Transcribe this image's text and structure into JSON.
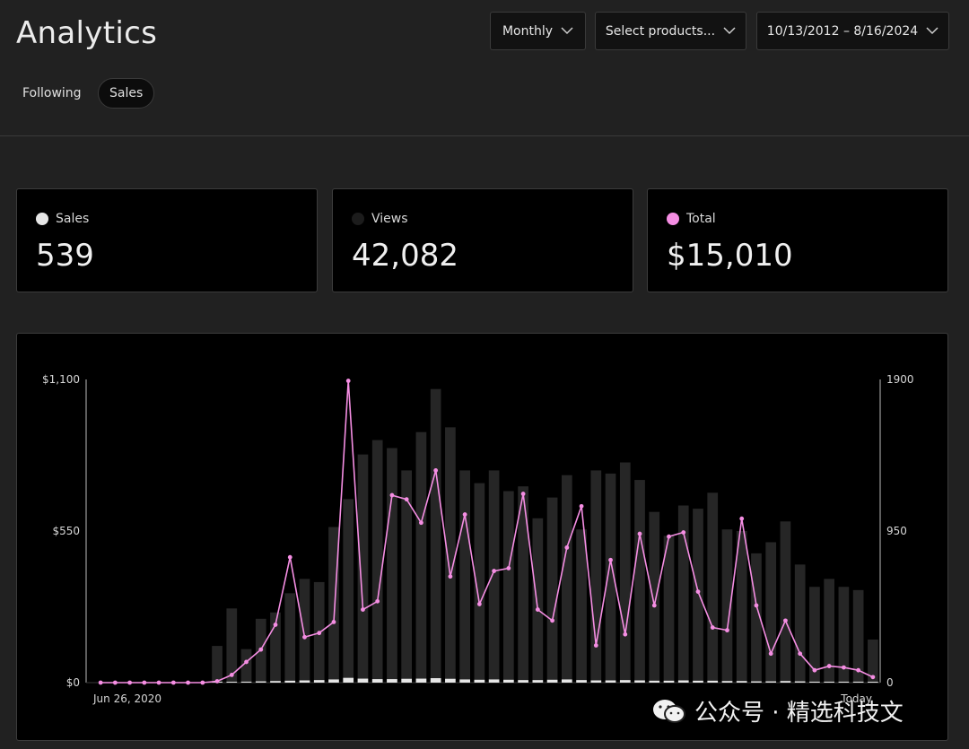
{
  "header": {
    "title": "Analytics"
  },
  "controls": {
    "period": "Monthly",
    "products": "Select products...",
    "date_range": "10/13/2012 – 8/16/2024"
  },
  "tabs": [
    {
      "label": "Following",
      "active": false
    },
    {
      "label": "Sales",
      "active": true
    }
  ],
  "metrics": [
    {
      "label": "Sales",
      "value": "539",
      "color": "#e6e6e6"
    },
    {
      "label": "Views",
      "value": "42,082",
      "color": "#1c1c1c"
    },
    {
      "label": "Total",
      "value": "$15,010",
      "color": "#f58ee3"
    }
  ],
  "watermark": "公众号 · 精选科技文",
  "chart_data": {
    "type": "bar+line",
    "x_start_label": "Jun 26, 2020",
    "x_end_label": "Today",
    "left_axis": {
      "ticks": [
        "$1,100",
        "$550",
        "$0"
      ],
      "range": [
        0,
        1100
      ]
    },
    "right_axis": {
      "ticks": [
        "1900",
        "950",
        "0"
      ],
      "range": [
        0,
        1900
      ]
    },
    "colors": {
      "views": "#262626",
      "sales": "#e6e6e6",
      "total": "#f58ee3"
    },
    "series": [
      {
        "name": "Views",
        "axis": "right",
        "values": [
          0,
          0,
          0,
          0,
          0,
          0,
          0,
          0,
          230,
          465,
          210,
          400,
          440,
          560,
          650,
          630,
          975,
          1150,
          1430,
          1520,
          1470,
          1330,
          1570,
          1840,
          1600,
          1330,
          1250,
          1330,
          1200,
          1230,
          1030,
          1160,
          1300,
          960,
          1330,
          1310,
          1380,
          1270,
          1070,
          920,
          1110,
          1090,
          1190,
          960,
          950,
          810,
          880,
          1010,
          740,
          600,
          650,
          600,
          580,
          270
        ],
        "axis_label": ""
      },
      {
        "name": "Sales",
        "axis": "right",
        "values": [
          0,
          0,
          0,
          0,
          0,
          0,
          0,
          0,
          2,
          4,
          6,
          8,
          10,
          12,
          14,
          16,
          20,
          30,
          25,
          22,
          22,
          24,
          25,
          28,
          24,
          20,
          18,
          20,
          18,
          16,
          16,
          18,
          20,
          16,
          14,
          14,
          16,
          14,
          12,
          12,
          14,
          12,
          12,
          10,
          10,
          8,
          8,
          10,
          8,
          6,
          6,
          6,
          6,
          4
        ]
      },
      {
        "name": "Total",
        "axis": "left",
        "values": [
          0,
          0,
          0,
          0,
          0,
          0,
          0,
          0,
          5,
          28,
          75,
          120,
          210,
          455,
          165,
          180,
          220,
          1095,
          265,
          295,
          680,
          665,
          580,
          770,
          385,
          610,
          285,
          405,
          415,
          685,
          265,
          225,
          490,
          640,
          135,
          445,
          175,
          540,
          280,
          530,
          545,
          330,
          200,
          190,
          595,
          280,
          105,
          225,
          105,
          45,
          60,
          55,
          45,
          20
        ]
      }
    ]
  }
}
